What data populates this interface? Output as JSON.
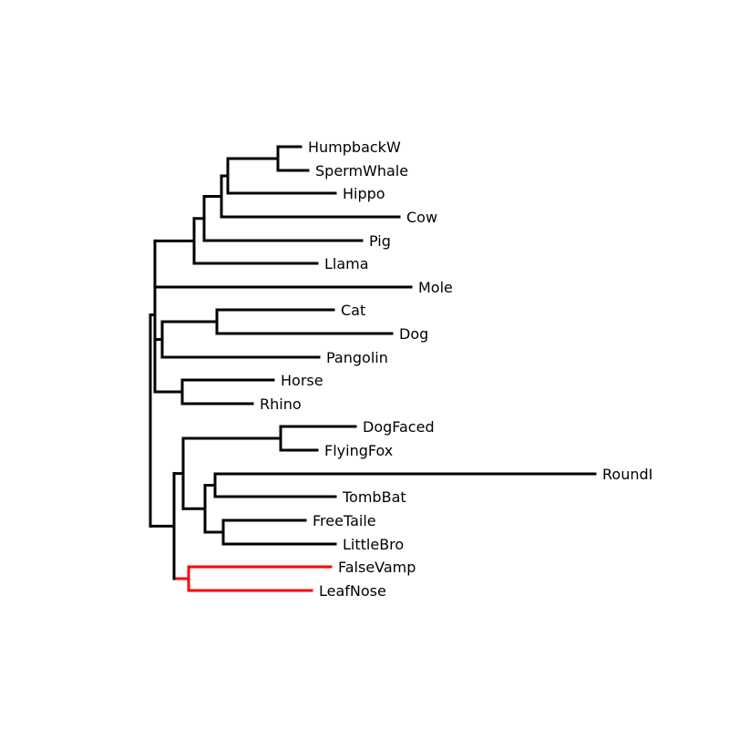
{
  "tree": {
    "edge_color": "#000000",
    "highlight_color": "#ff0000",
    "leaves": [
      {
        "id": "humpback",
        "label": "HumpbackW"
      },
      {
        "id": "spermwhale",
        "label": "SpermWhale"
      },
      {
        "id": "hippo",
        "label": "Hippo"
      },
      {
        "id": "cow",
        "label": "Cow"
      },
      {
        "id": "pig",
        "label": "Pig"
      },
      {
        "id": "llama",
        "label": "Llama"
      },
      {
        "id": "mole",
        "label": "Mole"
      },
      {
        "id": "cat",
        "label": "Cat"
      },
      {
        "id": "dog",
        "label": "Dog"
      },
      {
        "id": "pangolin",
        "label": "Pangolin"
      },
      {
        "id": "horse",
        "label": "Horse"
      },
      {
        "id": "rhino",
        "label": "Rhino"
      },
      {
        "id": "dogfaced",
        "label": "DogFaced"
      },
      {
        "id": "flyingfox",
        "label": "FlyingFox"
      },
      {
        "id": "roundl",
        "label": "RoundI"
      },
      {
        "id": "tombbat",
        "label": "TombBat"
      },
      {
        "id": "freetaile",
        "label": "FreeTaile"
      },
      {
        "id": "littlebro",
        "label": "LittleBro"
      },
      {
        "id": "falsevamp",
        "label": "FalseVamp"
      },
      {
        "id": "leafnose",
        "label": "LeafNose"
      }
    ],
    "highlighted_clade": [
      "falsevamp",
      "leafnose"
    ]
  }
}
